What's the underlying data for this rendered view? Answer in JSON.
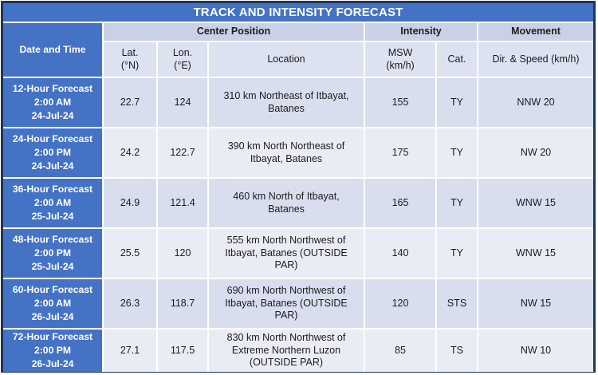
{
  "title": "TRACK AND INTENSITY FORECAST",
  "colors": {
    "primary_blue": "#4472C4",
    "header_bg": "#C9D1E8",
    "subheader_bg": "#DDE2F1",
    "row_odd_bg": "#D8DEED",
    "row_even_bg": "#EAECF5",
    "border_dark": "#203655",
    "text_dark": "#1C1C1C",
    "title_text": "#FFFFFF"
  },
  "header": {
    "date_time": "Date and Time",
    "groups": {
      "center_position": "Center Position",
      "intensity": "Intensity",
      "movement": "Movement"
    },
    "columns": {
      "lat_label": "Lat.",
      "lat_unit": "(°N)",
      "lon_label": "Lon.",
      "lon_unit": "(°E)",
      "location": "Location",
      "msw_label": "MSW",
      "msw_unit": "(km/h)",
      "cat": "Cat.",
      "dir_speed": "Dir. & Speed (km/h)"
    }
  },
  "rows": [
    {
      "forecast": "12-Hour Forecast",
      "time": "2:00 AM",
      "date": "24-Jul-24",
      "lat": "22.7",
      "lon": "124",
      "location": "310 km Northeast of Itbayat, Batanes",
      "msw": "155",
      "cat": "TY",
      "movement": "NNW 20"
    },
    {
      "forecast": "24-Hour Forecast",
      "time": "2:00 PM",
      "date": "24-Jul-24",
      "lat": "24.2",
      "lon": "122.7",
      "location": "390 km North Northeast of Itbayat, Batanes",
      "msw": "175",
      "cat": "TY",
      "movement": "NW 20"
    },
    {
      "forecast": "36-Hour Forecast",
      "time": "2:00 AM",
      "date": "25-Jul-24",
      "lat": "24.9",
      "lon": "121.4",
      "location": "460 km North of Itbayat, Batanes",
      "msw": "165",
      "cat": "TY",
      "movement": "WNW 15"
    },
    {
      "forecast": "48-Hour Forecast",
      "time": "2:00 PM",
      "date": "25-Jul-24",
      "lat": "25.5",
      "lon": "120",
      "location": "555 km North Northwest of Itbayat, Batanes (OUTSIDE PAR)",
      "msw": "140",
      "cat": "TY",
      "movement": "WNW 15"
    },
    {
      "forecast": "60-Hour Forecast",
      "time": "2:00 AM",
      "date": "26-Jul-24",
      "lat": "26.3",
      "lon": "118.7",
      "location": "690 km North Northwest of Itbayat, Batanes (OUTSIDE PAR)",
      "msw": "120",
      "cat": "STS",
      "movement": "NW 15"
    },
    {
      "forecast": "72-Hour Forecast",
      "time": "2:00 PM",
      "date": "26-Jul-24",
      "lat": "27.1",
      "lon": "117.5",
      "location": "830 km North Northwest of Extreme Northern Luzon (OUTSIDE PAR)",
      "msw": "85",
      "cat": "TS",
      "movement": "NW 10"
    }
  ]
}
